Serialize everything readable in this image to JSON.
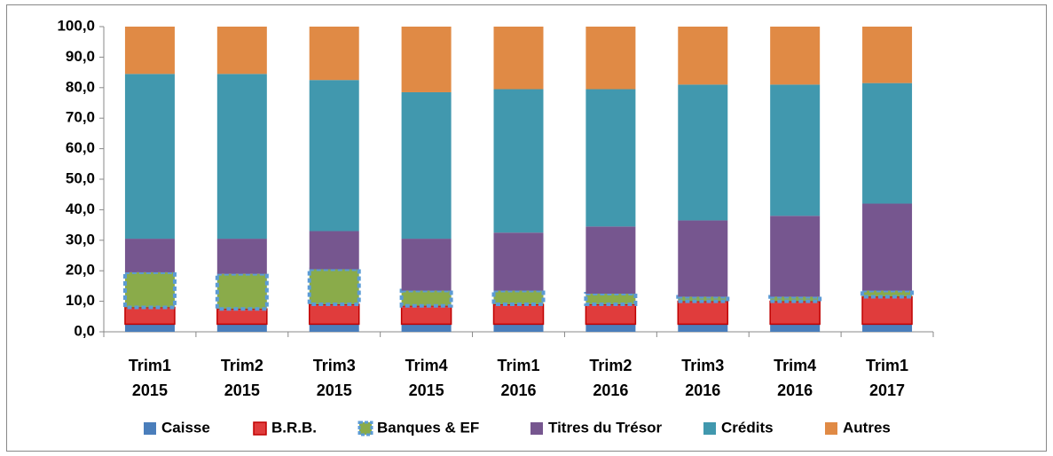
{
  "chart_data": {
    "type": "stacked_bar",
    "categories": [
      "Trim1\n2015",
      "Trim2\n2015",
      "Trim3\n2015",
      "Trim4\n2015",
      "Trim1\n2016",
      "Trim2\n2016",
      "Trim3\n2016",
      "Trim4\n2016",
      "Trim1\n2017"
    ],
    "series": [
      {
        "name": "Caisse",
        "color": "#4a7ebb",
        "values": [
          2.5,
          2.5,
          2.5,
          2.5,
          2.5,
          2.5,
          2.5,
          2.5,
          2.5
        ]
      },
      {
        "name": "B.R.B.",
        "color": "#e03c3c",
        "border": "#c00000",
        "values": [
          5.5,
          5,
          6.5,
          6,
          6.5,
          6.5,
          7.5,
          7.5,
          9
        ]
      },
      {
        "name": "Banques & EF",
        "color": "#8aab4a",
        "border": "#5b9bd5",
        "values": [
          11.5,
          11.5,
          11.5,
          5,
          4.5,
          3.5,
          1.5,
          1.5,
          2
        ]
      },
      {
        "name": "Titres du Trésor",
        "color": "#76568f",
        "values": [
          11,
          11.5,
          12.5,
          17,
          19,
          22,
          25,
          26.5,
          28.5
        ]
      },
      {
        "name": "Crédits",
        "color": "#4198ae",
        "values": [
          54,
          54,
          49.5,
          48,
          47,
          45,
          44.5,
          43,
          39.5
        ]
      },
      {
        "name": "Autres",
        "color": "#e08a45",
        "values": [
          15.5,
          15.5,
          17.5,
          21.5,
          20.5,
          20.5,
          19,
          19,
          18.5
        ]
      }
    ],
    "ylim": [
      0,
      100
    ],
    "yticks": [
      {
        "value": 0,
        "label": "0,0"
      },
      {
        "value": 10,
        "label": "10,0"
      },
      {
        "value": 20,
        "label": "20,0"
      },
      {
        "value": 30,
        "label": "30,0"
      },
      {
        "value": 40,
        "label": "40,0"
      },
      {
        "value": 50,
        "label": "50,0"
      },
      {
        "value": 60,
        "label": "60,0"
      },
      {
        "value": 70,
        "label": "70,0"
      },
      {
        "value": 80,
        "label": "80,0"
      },
      {
        "value": 90,
        "label": "90,0"
      },
      {
        "value": {
          "v": 100
        },
        "label": "100,0"
      }
    ]
  }
}
